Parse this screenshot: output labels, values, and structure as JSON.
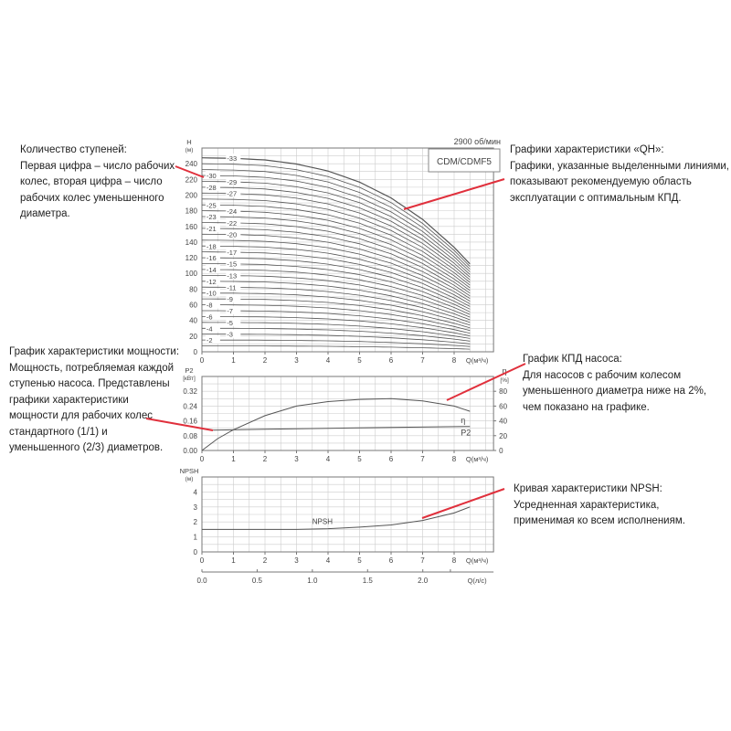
{
  "annotations": {
    "stages": "Количество ступеней:\nПервая цифра – число рабочих\nколес, вторая цифра – число\nрабочих колес уменьшенного\nдиаметра.",
    "qh": "Графики характеристики «QH»:\nГрафики, указанные выделенными линиями,\nпоказывают рекомендуемую область\nэксплуатации с оптимальным КПД.",
    "power": "График характеристики мощности:\nМощность, потребляемая каждой\nступенью насоса. Представлены\nграфики характеристики\nмощности для рабочих колес\nстандартного (1/1) и\nуменьшенного (2/3) диаметров.",
    "efficiency": "График КПД насоса:\nДля насосов с рабочим колесом\nуменьшенного диаметра ниже на 2%,\nчем показано на графике.",
    "npsh": "Кривая характеристики NPSH:\nУсредненная характеристика,\nприменимая ко всем исполнениям."
  },
  "colors": {
    "annotation_line": "#e0303c",
    "curve": "#555555",
    "grid": "#cccccc"
  },
  "chart_data": [
    {
      "type": "line",
      "title": "CDM/CDMF5",
      "subtitle": "2900 об/мин",
      "ylabel": "H",
      "yunit": "(м)",
      "xlabel": "Q(м³/ч)",
      "xlim": [
        0,
        9.25
      ],
      "ylim": [
        0,
        260
      ],
      "xticks": [
        0,
        1,
        2,
        3,
        4,
        5,
        6,
        7,
        8
      ],
      "yticks": [
        0,
        20,
        40,
        60,
        80,
        100,
        120,
        140,
        160,
        180,
        200,
        220,
        240
      ],
      "grid": true,
      "q": [
        0,
        1,
        2,
        3,
        4,
        5,
        6,
        7,
        8,
        8.5
      ],
      "head_per_stage": [
        7.5,
        7.48,
        7.42,
        7.26,
        6.99,
        6.56,
        5.95,
        5.12,
        4.04,
        3.4
      ],
      "stages": [
        {
          "label": "-33",
          "n": 33,
          "col": 2
        },
        {
          "label": "-30",
          "n": 30,
          "col": 1
        },
        {
          "label": "-29",
          "n": 29,
          "col": 2
        },
        {
          "label": "-28",
          "n": 28,
          "col": 1
        },
        {
          "label": "-27",
          "n": 27,
          "col": 2
        },
        {
          "label": "-25",
          "n": 25,
          "col": 1
        },
        {
          "label": "-24",
          "n": 24,
          "col": 2
        },
        {
          "label": "-23",
          "n": 23,
          "col": 1
        },
        {
          "label": "-22",
          "n": 22,
          "col": 2
        },
        {
          "label": "-21",
          "n": 21,
          "col": 1
        },
        {
          "label": "-20",
          "n": 20,
          "col": 2
        },
        {
          "label": "-18",
          "n": 18,
          "col": 1
        },
        {
          "label": "-17",
          "n": 17,
          "col": 2
        },
        {
          "label": "-16",
          "n": 16,
          "col": 1
        },
        {
          "label": "-15",
          "n": 15,
          "col": 2
        },
        {
          "label": "-14",
          "n": 14,
          "col": 1
        },
        {
          "label": "-13",
          "n": 13,
          "col": 2
        },
        {
          "label": "-12",
          "n": 12,
          "col": 1
        },
        {
          "label": "-11",
          "n": 11,
          "col": 2
        },
        {
          "label": "-10",
          "n": 10,
          "col": 1
        },
        {
          "label": "-9",
          "n": 9,
          "col": 2
        },
        {
          "label": "-8",
          "n": 8,
          "col": 1
        },
        {
          "label": "-7",
          "n": 7,
          "col": 2
        },
        {
          "label": "-6",
          "n": 6,
          "col": 1
        },
        {
          "label": "-5",
          "n": 5,
          "col": 2
        },
        {
          "label": "-4",
          "n": 4,
          "col": 1
        },
        {
          "label": "-3",
          "n": 3,
          "col": 2
        },
        {
          "label": "-2",
          "n": 2,
          "col": 1
        }
      ]
    },
    {
      "type": "line",
      "ylabel": "P2",
      "yunit": "[кВт]",
      "y2label": "η",
      "y2unit": "[%]",
      "xlabel": "Q(м³/ч)",
      "xlim": [
        0,
        9.25
      ],
      "ylim": [
        0,
        0.4
      ],
      "y2lim": [
        0,
        100
      ],
      "xticks": [
        0,
        1,
        2,
        3,
        4,
        5,
        6,
        7,
        8
      ],
      "yticks": [
        "0.00",
        "0.08",
        "0.16",
        "0.24",
        "0.32"
      ],
      "y2ticks": [
        0,
        20,
        40,
        60,
        80
      ],
      "grid": true,
      "series": [
        {
          "name": "η",
          "axis": "right",
          "x": [
            0,
            0.5,
            1,
            2,
            3,
            4,
            5,
            6,
            7,
            8,
            8.5
          ],
          "y": [
            0,
            16,
            28,
            47,
            60,
            66,
            69,
            70,
            67,
            60,
            53
          ]
        },
        {
          "name": "P2",
          "axis": "left",
          "x": [
            0.35,
            2,
            4,
            6,
            8.5
          ],
          "y": [
            0.11,
            0.115,
            0.12,
            0.125,
            0.13
          ]
        }
      ]
    },
    {
      "type": "line",
      "ylabel": "NPSH",
      "yunit": "(м)",
      "xlabel": "Q(м³/ч)",
      "x2label": "Q(л/с)",
      "xlim": [
        0,
        9.25
      ],
      "ylim": [
        0,
        5
      ],
      "xticks": [
        0,
        1,
        2,
        3,
        4,
        5,
        6,
        7,
        8
      ],
      "x2ticks": [
        "0.0",
        "0.5",
        "1.0",
        "1.5",
        "2.0"
      ],
      "yticks": [
        0,
        1,
        2,
        3,
        4
      ],
      "grid": true,
      "series": [
        {
          "name": "NPSH",
          "x": [
            0,
            1,
            2,
            3,
            4,
            5,
            6,
            7,
            8,
            8.5
          ],
          "y": [
            1.5,
            1.5,
            1.5,
            1.5,
            1.55,
            1.65,
            1.8,
            2.1,
            2.6,
            3.0
          ]
        }
      ]
    }
  ]
}
